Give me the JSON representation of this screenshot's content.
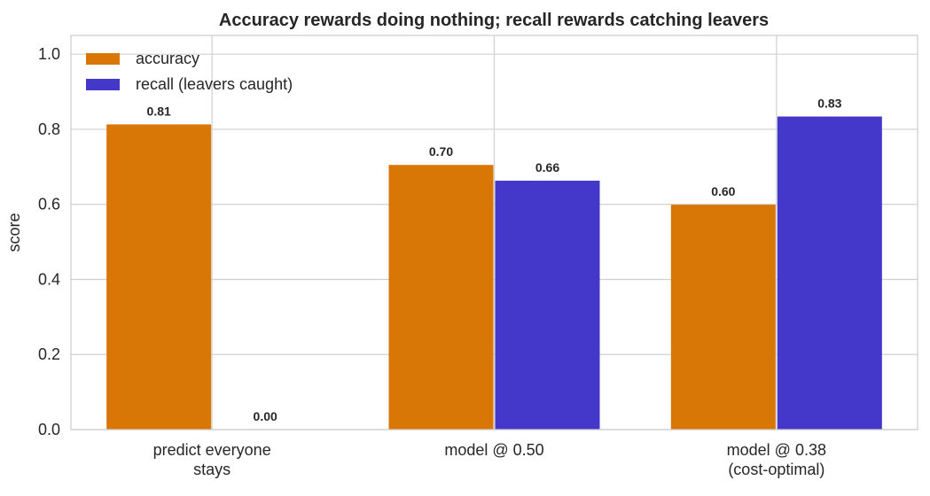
{
  "chart_data": {
    "type": "bar",
    "title": "Accuracy rewards doing nothing; recall rewards catching leavers",
    "xlabel": "",
    "ylabel": "score",
    "ylim": [
      0,
      1.05
    ],
    "yticks": [
      "0.0",
      "0.2",
      "0.4",
      "0.6",
      "0.8",
      "1.0"
    ],
    "grid": true,
    "legend_position": "top-left",
    "categories": [
      [
        "predict everyone",
        "stays"
      ],
      [
        "model @ 0.50"
      ],
      [
        "model @ 0.38",
        "(cost-optimal)"
      ]
    ],
    "series": [
      {
        "name": "accuracy",
        "color": "#d97706",
        "values": [
          0.813,
          0.705,
          0.599
        ],
        "labels": [
          "0.81",
          "0.70",
          "0.60"
        ]
      },
      {
        "name": "recall (leavers caught)",
        "color": "#4338ca",
        "values": [
          0.0,
          0.663,
          0.834
        ],
        "labels": [
          "0.00",
          "0.66",
          "0.83"
        ]
      }
    ]
  }
}
